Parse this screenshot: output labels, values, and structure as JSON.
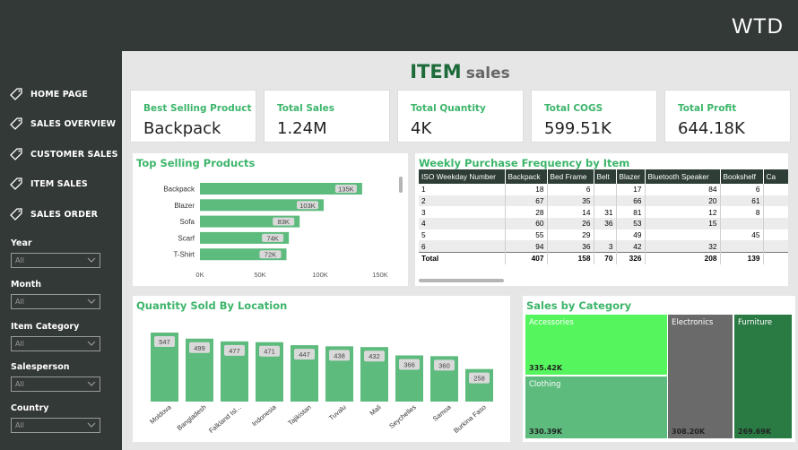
{
  "brand": {
    "logo": "WTD"
  },
  "nav": [
    {
      "label": "HOME PAGE",
      "icon": "tag-icon"
    },
    {
      "label": "SALES OVERVIEW",
      "icon": "tag-icon"
    },
    {
      "label": "CUSTOMER SALES",
      "icon": "tag-icon"
    },
    {
      "label": "ITEM SALES",
      "icon": "tag-icon"
    },
    {
      "label": "SALES ORDER",
      "icon": "tag-icon"
    }
  ],
  "filters": [
    {
      "label": "Year",
      "value": "All"
    },
    {
      "label": "Month",
      "value": "All"
    },
    {
      "label": "Item Category",
      "value": "All"
    },
    {
      "label": "Salesperson",
      "value": "All"
    },
    {
      "label": "Country",
      "value": "All"
    }
  ],
  "title": {
    "main": "ITEM",
    "sub": "sales"
  },
  "kpis": [
    {
      "label": "Best Selling Product",
      "value": "Backpack"
    },
    {
      "label": "Total Sales",
      "value": "1.24M"
    },
    {
      "label": "Total Quantity",
      "value": "4K"
    },
    {
      "label": "Total COGS",
      "value": "599.51K"
    },
    {
      "label": "Total Profit",
      "value": "644.18K"
    }
  ],
  "top_products": {
    "title": "Top Selling Products",
    "chart_data": {
      "type": "bar",
      "orientation": "horizontal",
      "categories": [
        "Backpack",
        "Blazer",
        "Sofa",
        "Scarf",
        "T-Shirt"
      ],
      "values": [
        135,
        103,
        83,
        74,
        72
      ],
      "labels": [
        "135K",
        "103K",
        "83K",
        "74K",
        "72K"
      ],
      "xlim": [
        0,
        150
      ],
      "xticks": [
        "0K",
        "50K",
        "100K",
        "150K"
      ],
      "color": "#5dbb7d"
    }
  },
  "weekly": {
    "title": "Weekly Purchase Frequency by Item",
    "columns": [
      "ISO Weekday Number",
      "Backpack",
      "Bed Frame",
      "Belt",
      "Blazer",
      "Bluetooth Speaker",
      "Bookshelf",
      "Ca"
    ],
    "rows": [
      [
        "1",
        "18",
        "6",
        "",
        "17",
        "84",
        "6",
        ""
      ],
      [
        "2",
        "67",
        "35",
        "",
        "66",
        "20",
        "61",
        ""
      ],
      [
        "3",
        "28",
        "14",
        "31",
        "81",
        "12",
        "8",
        ""
      ],
      [
        "4",
        "60",
        "26",
        "36",
        "53",
        "15",
        "",
        ""
      ],
      [
        "5",
        "55",
        "29",
        "",
        "49",
        "",
        "45",
        ""
      ],
      [
        "6",
        "94",
        "36",
        "3",
        "42",
        "32",
        "",
        ""
      ]
    ],
    "total": [
      "Total",
      "407",
      "158",
      "70",
      "326",
      "208",
      "139",
      ""
    ]
  },
  "location": {
    "title": "Quantity Sold By Location",
    "chart_data": {
      "type": "bar",
      "categories": [
        "Moldova",
        "Bangladesh",
        "Falkland Isl...",
        "Indonesia",
        "Tajikistan",
        "Tuvalu",
        "Mali",
        "Seychelles",
        "Samoa",
        "Burkina Faso"
      ],
      "values": [
        547,
        499,
        477,
        471,
        447,
        438,
        432,
        366,
        360,
        258
      ],
      "labels": [
        "547",
        "499",
        "477",
        "471",
        "447",
        "438",
        "432",
        "366",
        "360",
        "258"
      ],
      "ylim": [
        0,
        560
      ],
      "color": "#5dbb7d"
    }
  },
  "category": {
    "title": "Sales by Category",
    "chart_data": {
      "type": "treemap",
      "items": [
        {
          "name": "Accessories",
          "value": 335.42,
          "label": "335.42K",
          "color": "#55f55e"
        },
        {
          "name": "Clothing",
          "value": 330.39,
          "label": "330.39K",
          "color": "#5dbb7d"
        },
        {
          "name": "Electronics",
          "value": 308.2,
          "label": "308.20K",
          "color": "#6a6a6a"
        },
        {
          "name": "Furniture",
          "value": 269.69,
          "label": "269.69K",
          "color": "#2a7a43"
        }
      ]
    }
  }
}
